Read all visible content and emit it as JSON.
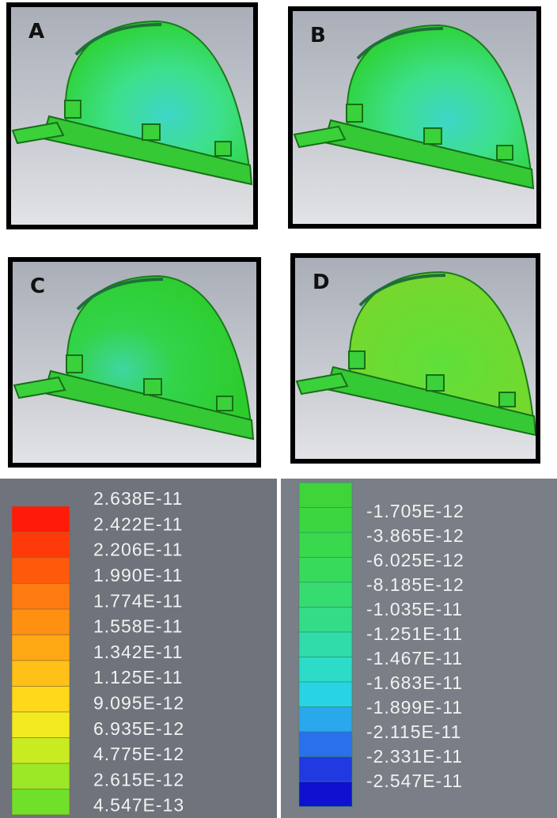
{
  "panels": [
    {
      "label": "A"
    },
    {
      "label": "B"
    },
    {
      "label": "C"
    },
    {
      "label": "D"
    }
  ],
  "legend_left": {
    "labels": [
      "2.638E-11",
      "2.422E-11",
      "2.206E-11",
      "1.990E-11",
      "1.774E-11",
      "1.558E-11",
      "1.342E-11",
      "1.125E-11",
      "9.095E-12",
      "6.935E-12",
      "4.775E-12",
      "2.615E-12",
      "4.547E-13"
    ]
  },
  "legend_right": {
    "labels": [
      "-1.705E-12",
      "-3.865E-12",
      "-6.025E-12",
      "-8.185E-12",
      "-1.035E-11",
      "-1.251E-11",
      "-1.467E-11",
      "-1.683E-11",
      "-1.899E-11",
      "-2.115E-11",
      "-2.331E-11",
      "-2.547E-11"
    ]
  }
}
